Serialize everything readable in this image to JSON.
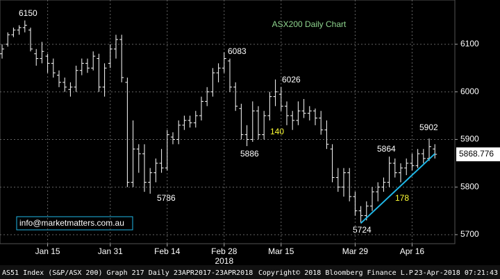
{
  "chart_data": {
    "type": "ohlc",
    "title": "ASX200 Daily Chart",
    "title_color": "#8fd68f",
    "categories": [
      null,
      null,
      null,
      null,
      null,
      null,
      null,
      null,
      "Jan 15",
      null,
      null,
      null,
      null,
      null,
      null,
      null,
      null,
      null,
      null,
      "Jan 31",
      null,
      null,
      null,
      null,
      null,
      null,
      null,
      null,
      null,
      "Feb 14",
      null,
      null,
      null,
      null,
      null,
      null,
      null,
      null,
      null,
      "Feb 28",
      null,
      null,
      null,
      null,
      null,
      null,
      null,
      null,
      null,
      "Mar 15",
      null,
      null,
      null,
      null,
      null,
      null,
      null,
      null,
      null,
      null,
      null,
      null,
      "Mar 29",
      null,
      null,
      null,
      null,
      null,
      null,
      null,
      null,
      null,
      "Apr 16",
      null,
      null,
      null,
      null
    ],
    "year_label": "2018",
    "open": [
      6080,
      6100,
      6120,
      6130,
      6135,
      6130,
      6080,
      6070,
      6075,
      6060,
      6035,
      6020,
      6005,
      6010,
      6045,
      6060,
      6050,
      6070,
      6010,
      6060,
      6090,
      6110,
      6020,
      5810,
      5880,
      5870,
      5810,
      5830,
      5850,
      5840,
      5905,
      5900,
      5930,
      5940,
      5935,
      5950,
      5980,
      6000,
      6040,
      6050,
      6065,
      6010,
      5965,
      5910,
      5900,
      5960,
      5910,
      5950,
      5990,
      5995,
      5970,
      5950,
      5940,
      5960,
      5955,
      5960,
      5945,
      5920,
      5880,
      5820,
      5800,
      5830,
      5780,
      5750,
      5740,
      5760,
      5790,
      5800,
      5810,
      5850,
      5830,
      5840,
      5850,
      5845,
      5870,
      5860,
      5880
    ],
    "high": [
      6100,
      6125,
      6135,
      6140,
      6150,
      6135,
      6090,
      6105,
      6080,
      6070,
      6045,
      6030,
      6020,
      6055,
      6070,
      6070,
      6085,
      6080,
      6060,
      6100,
      6120,
      6120,
      6030,
      5940,
      5890,
      5890,
      5840,
      5860,
      5880,
      5920,
      5915,
      5940,
      5950,
      5950,
      5960,
      5990,
      6010,
      6050,
      6060,
      6083,
      6070,
      6020,
      5975,
      5930,
      5980,
      5970,
      5960,
      6000,
      6026,
      6010,
      5980,
      5960,
      5980,
      5985,
      5970,
      5965,
      5960,
      5940,
      5890,
      5840,
      5840,
      5840,
      5790,
      5760,
      5770,
      5800,
      5810,
      5820,
      5864,
      5860,
      5850,
      5860,
      5870,
      5880,
      5880,
      5902,
      5890
    ],
    "low": [
      6070,
      6095,
      6115,
      6120,
      6125,
      6085,
      6055,
      6060,
      6040,
      6030,
      6010,
      6000,
      5990,
      6000,
      6035,
      6040,
      6045,
      6000,
      5990,
      6050,
      6070,
      6020,
      5800,
      5800,
      5830,
      5790,
      5786,
      5810,
      5830,
      5835,
      5890,
      5890,
      5920,
      5925,
      5925,
      5940,
      5970,
      5990,
      6020,
      6040,
      6000,
      5960,
      5900,
      5886,
      5895,
      5900,
      5900,
      5940,
      5970,
      5960,
      5930,
      5920,
      5930,
      5945,
      5940,
      5930,
      5910,
      5880,
      5810,
      5790,
      5780,
      5770,
      5740,
      5724,
      5730,
      5750,
      5770,
      5790,
      5800,
      5820,
      5810,
      5825,
      5835,
      5840,
      5850,
      5855,
      5860
    ],
    "close": [
      6090,
      6120,
      6130,
      6135,
      6140,
      6090,
      6070,
      6085,
      6060,
      6040,
      6020,
      6010,
      6010,
      6045,
      6060,
      6050,
      6075,
      6010,
      6050,
      6090,
      6110,
      6030,
      5810,
      5880,
      5870,
      5810,
      5830,
      5850,
      5840,
      5910,
      5900,
      5930,
      5940,
      5935,
      5950,
      5980,
      6000,
      6040,
      6050,
      6070,
      6010,
      5970,
      5910,
      5900,
      5960,
      5910,
      5950,
      5990,
      6000,
      5970,
      5950,
      5940,
      5960,
      5955,
      5960,
      5945,
      5920,
      5890,
      5820,
      5800,
      5830,
      5780,
      5750,
      5740,
      5760,
      5790,
      5800,
      5810,
      5850,
      5830,
      5840,
      5850,
      5845,
      5870,
      5860,
      5885,
      5868.776
    ],
    "bar_color": "#ffffff",
    "ylim": [
      5681,
      6193
    ],
    "yticks": [
      5700,
      5800,
      5900,
      6000,
      6100
    ],
    "grid": true,
    "trendline": {
      "from_bar": 63,
      "to_bar": 76,
      "values": [
        5724,
        5870
      ],
      "color": "#1fb8e8"
    },
    "annotations": [
      6150,
      6083,
      6026,
      5886,
      5786,
      5864,
      5902,
      5724
    ],
    "range_labels": [
      140,
      178
    ],
    "range_label_color": "#ffff33",
    "watermark": "info@marketmatters.com.au",
    "footer": {
      "left": "AS51 Index (S&P/ASX 200) Graph 217  Daily 23APR2017-23APR2018",
      "center": "Copyright© 2018 Bloomberg Finance L.P.",
      "right": "23-Apr-2018 07:21:43"
    }
  }
}
